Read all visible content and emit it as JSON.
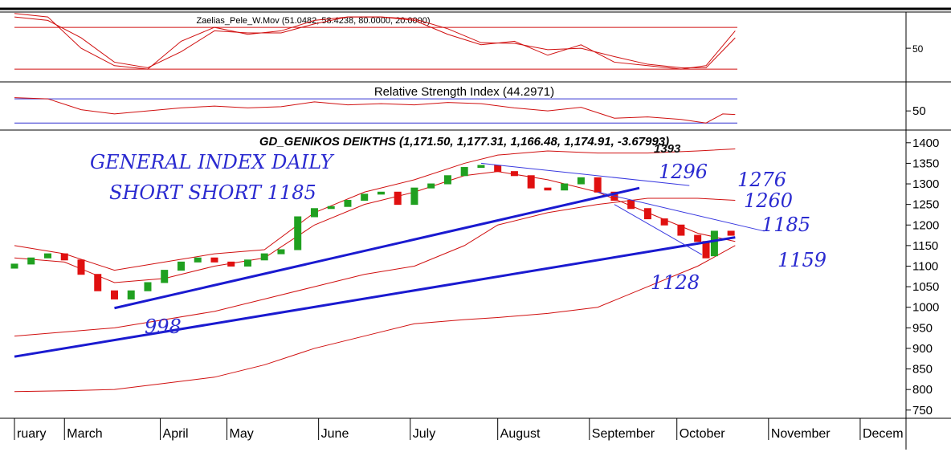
{
  "chart_data": [
    {
      "type": "line",
      "title": "Zaelias_Pele_W.Mov (51.0482, 58.4238, 80.0000, 20.0000)",
      "xlim": [
        0,
        214
      ],
      "ylim": [
        4,
        102
      ],
      "yticks": [
        50
      ],
      "levels": [
        80,
        20
      ],
      "level_color": "#d01010",
      "x": [
        0,
        8,
        16,
        24,
        32,
        40,
        48,
        56,
        64,
        72,
        80,
        88,
        96,
        104,
        112,
        120,
        128,
        136,
        144,
        152,
        160,
        166,
        173
      ],
      "series": [
        {
          "color": "#d01010",
          "values": [
            100,
            95,
            50,
            25,
            20,
            60,
            80,
            70,
            75,
            90,
            95,
            95,
            90,
            70,
            55,
            60,
            40,
            55,
            30,
            25,
            20,
            25,
            75
          ]
        },
        {
          "color": "#d01010",
          "values": [
            95,
            90,
            65,
            30,
            22,
            45,
            75,
            72,
            72,
            85,
            95,
            95,
            92,
            78,
            58,
            57,
            48,
            50,
            38,
            27,
            22,
            22,
            65
          ]
        }
      ]
    },
    {
      "type": "line",
      "title": "Relative Strength Index (44.2971)",
      "xlim": [
        0,
        214
      ],
      "ylim": [
        21,
        94
      ],
      "yticks": [
        50
      ],
      "levels": [
        70,
        30
      ],
      "level_color": "#3030d0",
      "x": [
        0,
        8,
        16,
        24,
        32,
        40,
        48,
        56,
        64,
        72,
        80,
        88,
        96,
        104,
        112,
        120,
        128,
        136,
        144,
        152,
        160,
        166,
        170,
        173
      ],
      "series": [
        {
          "color": "#d01010",
          "values": [
            72,
            70,
            52,
            45,
            50,
            55,
            58,
            55,
            57,
            65,
            60,
            62,
            60,
            64,
            62,
            55,
            50,
            56,
            38,
            40,
            36,
            30,
            45,
            44
          ]
        }
      ]
    },
    {
      "type": "candlestick",
      "title": "GD_GENIKOS DEIKTHS (1,171.50, 1,177.31, 1,166.48, 1,174.91, -3.67993)",
      "xlim": [
        0,
        214
      ],
      "ylim": [
        732,
        1425
      ],
      "yticks": [
        750,
        800,
        850,
        900,
        950,
        1000,
        1050,
        1100,
        1150,
        1200,
        1250,
        1300,
        1350,
        1400
      ],
      "xticks": [
        {
          "value": 0,
          "label": "ruary"
        },
        {
          "value": 12,
          "label": "March"
        },
        {
          "value": 35,
          "label": "April"
        },
        {
          "value": 51,
          "label": "May"
        },
        {
          "value": 73,
          "label": "June"
        },
        {
          "value": 95,
          "label": "July"
        },
        {
          "value": 116,
          "label": "August"
        },
        {
          "value": 138,
          "label": "September"
        },
        {
          "value": 159,
          "label": "October"
        },
        {
          "value": 181,
          "label": "November"
        },
        {
          "value": 203,
          "label": "Decem"
        }
      ],
      "up_color": "#20a020",
      "down_color": "#e01010",
      "x": [
        0,
        4,
        8,
        12,
        16,
        20,
        24,
        28,
        32,
        36,
        40,
        44,
        48,
        52,
        56,
        60,
        64,
        68,
        72,
        76,
        80,
        84,
        88,
        92,
        96,
        100,
        104,
        108,
        112,
        116,
        120,
        124,
        128,
        132,
        136,
        140,
        144,
        148,
        152,
        156,
        160,
        164,
        166,
        168,
        172
      ],
      "open": [
        1095,
        1105,
        1120,
        1130,
        1115,
        1080,
        1040,
        1020,
        1040,
        1060,
        1090,
        1110,
        1120,
        1110,
        1100,
        1115,
        1130,
        1140,
        1220,
        1240,
        1245,
        1260,
        1275,
        1280,
        1250,
        1290,
        1300,
        1320,
        1340,
        1345,
        1330,
        1320,
        1290,
        1285,
        1300,
        1315,
        1280,
        1260,
        1240,
        1215,
        1200,
        1175,
        1160,
        1125,
        1185
      ],
      "close": [
        1105,
        1120,
        1130,
        1115,
        1080,
        1040,
        1020,
        1040,
        1060,
        1090,
        1110,
        1120,
        1110,
        1100,
        1115,
        1130,
        1140,
        1220,
        1240,
        1245,
        1260,
        1275,
        1280,
        1250,
        1290,
        1300,
        1320,
        1340,
        1345,
        1330,
        1320,
        1290,
        1285,
        1300,
        1315,
        1280,
        1260,
        1240,
        1215,
        1200,
        1175,
        1160,
        1120,
        1185,
        1175
      ],
      "lines_x": [
        0,
        12,
        24,
        36,
        48,
        60,
        72,
        84,
        96,
        108,
        116,
        128,
        140,
        152,
        164,
        173
      ],
      "lines": [
        {
          "color": "#d01010",
          "values": [
            1150,
            1130,
            1090,
            1110,
            1130,
            1140,
            1230,
            1280,
            1310,
            1350,
            1370,
            1380,
            1375,
            1375,
            1380,
            1385
          ]
        },
        {
          "color": "#d01010",
          "values": [
            1120,
            1110,
            1060,
            1070,
            1100,
            1120,
            1200,
            1250,
            1280,
            1320,
            1330,
            1310,
            1280,
            1230,
            1180,
            1160
          ]
        },
        {
          "color": "#d01010",
          "values": [
            930,
            940,
            950,
            970,
            990,
            1020,
            1050,
            1080,
            1100,
            1150,
            1200,
            1230,
            1250,
            1265,
            1265,
            1260
          ]
        },
        {
          "color": "#d01010",
          "values": [
            795,
            797,
            800,
            815,
            830,
            860,
            900,
            930,
            960,
            970,
            975,
            985,
            1000,
            1050,
            1100,
            1150
          ]
        }
      ],
      "trendlines": [
        {
          "color": "#1a1ad0",
          "width": 3,
          "x": [
            24,
            150
          ],
          "values": [
            998,
            1290
          ]
        },
        {
          "color": "#1a1ad0",
          "width": 3,
          "x": [
            0,
            173
          ],
          "values": [
            880,
            1170
          ]
        },
        {
          "color": "#3a3ae0",
          "width": 1,
          "x": [
            112,
            162
          ],
          "values": [
            1350,
            1296
          ]
        },
        {
          "color": "#3a3ae0",
          "width": 1,
          "x": [
            140,
            180
          ],
          "values": [
            1280,
            1185
          ]
        },
        {
          "color": "#3a3ae0",
          "width": 1,
          "x": [
            144,
            165
          ],
          "values": [
            1250,
            1128
          ]
        }
      ],
      "annotations": [
        "GENERAL INDEX DAILY",
        "SHORT SHORT 1185",
        "998",
        "1296",
        "1276",
        "1260",
        "1185",
        "1159",
        "1128",
        "1393"
      ]
    }
  ]
}
